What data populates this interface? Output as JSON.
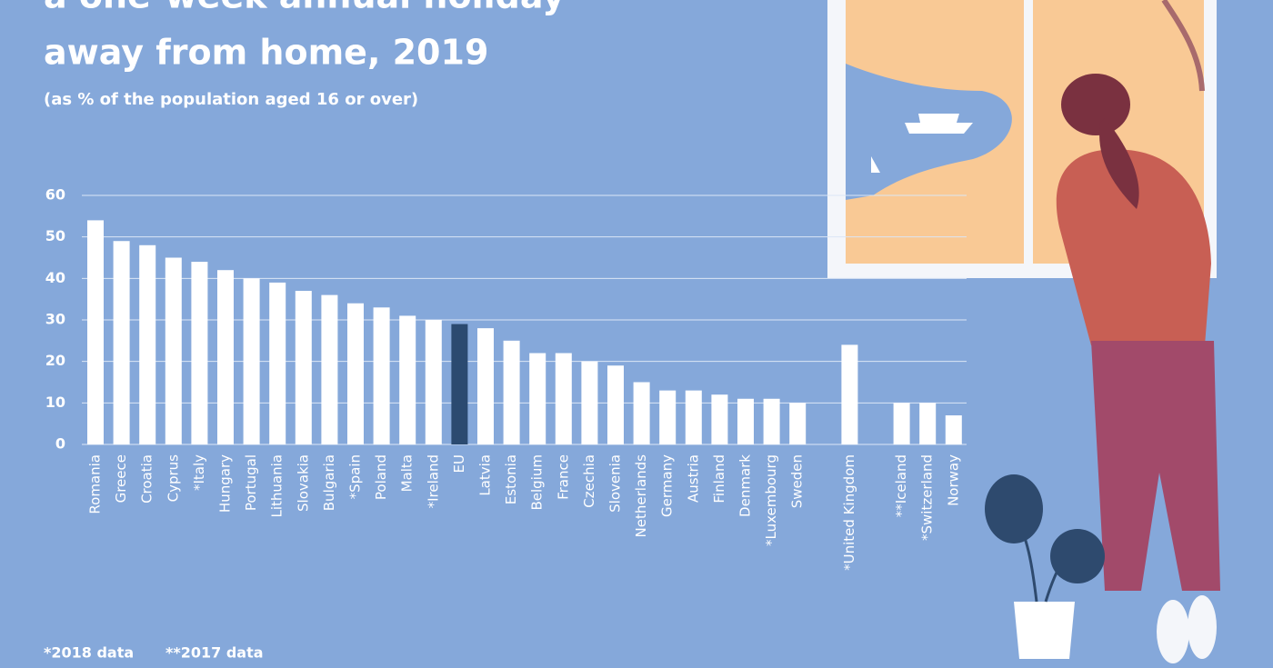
{
  "chart_data": {
    "type": "bar",
    "title": [
      "a one-week annual holiday",
      "away from home, 2019"
    ],
    "subtitle": "(as % of the population aged 16 or over)",
    "categories": [
      "Romania",
      "Greece",
      "Croatia",
      "Cyprus",
      "*Italy",
      "Hungary",
      "Portugal",
      "Lithuania",
      "Slovakia",
      "Bulgaria",
      "*Spain",
      "Poland",
      "Malta",
      "*Ireland",
      "EU",
      "Latvia",
      "Estonia",
      "Belgium",
      "France",
      "Czechia",
      "Slovenia",
      "Netherlands",
      "Germany",
      "Austria",
      "Finland",
      "Denmark",
      "*Luxembourg",
      "Sweden",
      "*United Kingdom",
      "**Iceland",
      "*Switzerland",
      "Norway"
    ],
    "values": [
      54,
      49,
      48,
      45,
      44,
      42,
      40,
      39,
      37,
      36,
      34,
      33,
      31,
      30,
      29,
      28,
      25,
      22,
      22,
      20,
      19,
      15,
      13,
      13,
      12,
      11,
      11,
      10,
      24,
      10,
      10,
      7
    ],
    "color": "#ffffff",
    "highlight": "EU",
    "highlight_color": "#2b4a70",
    "ylim": [
      0,
      60
    ],
    "yticks": [
      0,
      10,
      20,
      30,
      40,
      50,
      60
    ],
    "grid": true,
    "footnotes": [
      "*2018 data",
      "**2017 data"
    ]
  }
}
